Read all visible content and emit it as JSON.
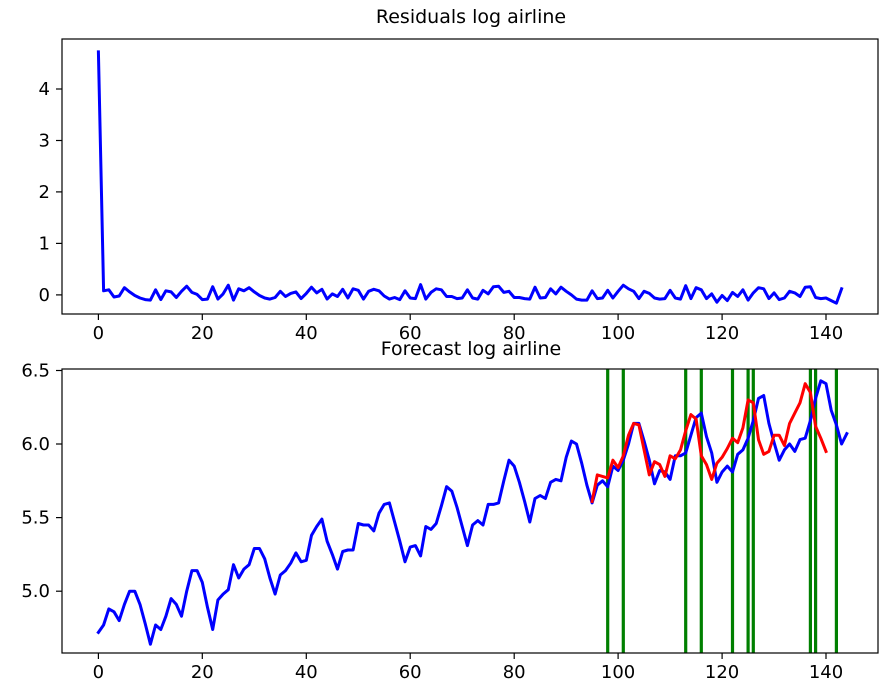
{
  "chart_data": [
    {
      "type": "line",
      "title": "Residuals log airline",
      "xlabel": "",
      "ylabel": "",
      "xlim": [
        -7,
        150
      ],
      "ylim": [
        -0.37,
        4.97
      ],
      "x_ticks": [
        0,
        20,
        40,
        60,
        80,
        100,
        120,
        140
      ],
      "y_ticks": [
        0,
        1,
        2,
        3,
        4
      ],
      "grid": false,
      "series": [
        {
          "color": "#0000ff",
          "x_start": 0,
          "values": [
            4.72,
            0.08,
            0.1,
            -0.04,
            -0.02,
            0.14,
            0.06,
            -0.01,
            -0.06,
            -0.09,
            -0.1,
            0.1,
            -0.09,
            0.08,
            0.06,
            -0.05,
            0.07,
            0.17,
            0.05,
            0.01,
            -0.09,
            -0.08,
            0.16,
            -0.08,
            0.02,
            0.19,
            -0.1,
            0.12,
            0.08,
            0.14,
            0.06,
            -0.01,
            -0.06,
            -0.08,
            -0.05,
            0.07,
            -0.03,
            0.03,
            0.06,
            -0.07,
            0.03,
            0.15,
            0.04,
            0.11,
            -0.08,
            0.02,
            -0.03,
            0.11,
            -0.06,
            0.12,
            0.09,
            -0.08,
            0.07,
            0.11,
            0.08,
            -0.02,
            -0.08,
            -0.05,
            -0.09,
            0.08,
            -0.06,
            -0.07,
            0.2,
            -0.08,
            0.05,
            0.12,
            0.1,
            -0.03,
            -0.03,
            -0.07,
            -0.06,
            0.1,
            -0.06,
            -0.08,
            0.09,
            0.02,
            0.16,
            0.17,
            0.05,
            0.07,
            -0.05,
            -0.05,
            -0.07,
            -0.08,
            0.15,
            -0.06,
            -0.05,
            0.12,
            0.02,
            0.15,
            0.07,
            0.0,
            -0.08,
            -0.1,
            -0.1,
            0.08,
            -0.07,
            -0.06,
            0.09,
            -0.06,
            0.07,
            0.19,
            0.12,
            0.07,
            -0.07,
            0.07,
            0.03,
            -0.06,
            -0.08,
            -0.07,
            0.09,
            -0.06,
            -0.08,
            0.18,
            -0.07,
            0.14,
            0.1,
            -0.07,
            0.02,
            -0.14,
            -0.01,
            -0.11,
            0.05,
            -0.03,
            0.1,
            -0.1,
            0.04,
            0.14,
            0.12,
            -0.07,
            0.04,
            -0.09,
            -0.06,
            0.07,
            0.04,
            -0.03,
            0.15,
            0.16,
            -0.05,
            -0.07,
            -0.06,
            -0.11,
            -0.16,
            0.12
          ]
        }
      ]
    },
    {
      "type": "line",
      "title": "Forecast log airline",
      "xlabel": "",
      "ylabel": "",
      "xlim": [
        -7,
        150
      ],
      "ylim": [
        4.58,
        6.51
      ],
      "x_ticks": [
        0,
        20,
        40,
        60,
        80,
        100,
        120,
        140
      ],
      "y_ticks": [
        "5.0",
        "5.5",
        "6.0",
        "6.5"
      ],
      "grid": false,
      "series": [
        {
          "color": "#0000ff",
          "x_start": 0,
          "values": [
            4.72,
            4.77,
            4.88,
            4.86,
            4.8,
            4.91,
            5.0,
            5.0,
            4.91,
            4.78,
            4.64,
            4.77,
            4.74,
            4.83,
            4.95,
            4.91,
            4.83,
            5.0,
            5.14,
            5.14,
            5.06,
            4.89,
            4.74,
            4.94,
            4.98,
            5.01,
            5.18,
            5.09,
            5.15,
            5.18,
            5.29,
            5.29,
            5.22,
            5.09,
            4.98,
            5.11,
            5.14,
            5.19,
            5.26,
            5.2,
            5.21,
            5.38,
            5.44,
            5.49,
            5.34,
            5.25,
            5.15,
            5.27,
            5.28,
            5.28,
            5.46,
            5.45,
            5.45,
            5.41,
            5.53,
            5.59,
            5.6,
            5.47,
            5.34,
            5.2,
            5.3,
            5.31,
            5.24,
            5.44,
            5.42,
            5.46,
            5.58,
            5.71,
            5.68,
            5.57,
            5.44,
            5.31,
            5.45,
            5.48,
            5.45,
            5.59,
            5.59,
            5.6,
            5.75,
            5.89,
            5.85,
            5.74,
            5.61,
            5.47,
            5.63,
            5.65,
            5.63,
            5.74,
            5.76,
            5.75,
            5.91,
            6.02,
            6.0,
            5.87,
            5.72,
            5.6,
            5.72,
            5.75,
            5.71,
            5.85,
            5.82,
            5.89,
            6.0,
            6.14,
            6.14,
            6.02,
            5.89,
            5.73,
            5.82,
            5.81,
            5.76,
            5.92,
            5.92,
            5.94,
            6.06,
            6.18,
            6.21,
            6.05,
            5.94,
            5.74,
            5.81,
            5.85,
            5.81,
            5.93,
            5.96,
            6.04,
            6.16,
            6.31,
            6.33,
            6.14,
            6.01,
            5.89,
            5.96,
            6.0,
            5.95,
            6.03,
            6.04,
            6.16,
            6.31,
            6.43,
            6.41,
            6.23,
            6.13,
            6.0,
            6.07
          ]
        },
        {
          "color": "#ff0000",
          "x_start": 95,
          "values": [
            5.61,
            5.79,
            5.78,
            5.77,
            5.89,
            5.84,
            5.92,
            6.06,
            6.14,
            6.13,
            5.96,
            5.79,
            5.88,
            5.86,
            5.78,
            5.92,
            5.9,
            5.96,
            6.09,
            6.2,
            6.17,
            5.92,
            5.86,
            5.76,
            5.87,
            5.91,
            5.97,
            6.04,
            6.01,
            6.11,
            6.3,
            6.28,
            6.03,
            5.93,
            5.95,
            6.06,
            6.06,
            5.99,
            6.14,
            6.21,
            6.28,
            6.41,
            6.35,
            6.12,
            6.04,
            5.95
          ]
        }
      ],
      "vlines": {
        "color": "#008000",
        "x": [
          98,
          101,
          113,
          116,
          122,
          125,
          126,
          137,
          138,
          142
        ]
      }
    }
  ]
}
